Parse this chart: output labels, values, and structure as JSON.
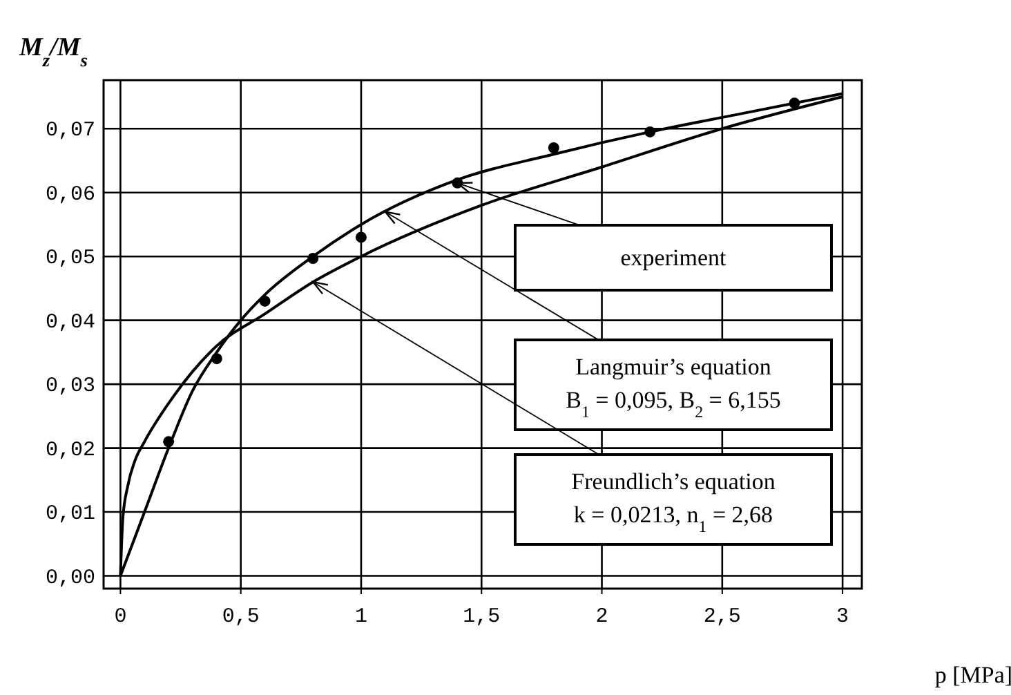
{
  "chart_data": {
    "type": "line",
    "xlabel": "p [MPa]",
    "ylabel": "M$_{z}$/M$_{s}$",
    "xlim": [
      -0.07,
      3.08
    ],
    "ylim": [
      -0.002,
      0.0776
    ],
    "xticks": [
      0,
      {
        "value": 0.5,
        "label": "0,5"
      },
      1,
      {
        "value": 1.5,
        "label": "1,5"
      },
      2,
      {
        "value": 2.5,
        "label": "2,5"
      },
      3
    ],
    "yticks": [
      {
        "value": 0,
        "label": "0,00"
      },
      {
        "value": 0.01,
        "label": "0,01"
      },
      {
        "value": 0.02,
        "label": "0,02"
      },
      {
        "value": 0.03,
        "label": "0,03"
      },
      {
        "value": 0.04,
        "label": "0,04"
      },
      {
        "value": 0.05,
        "label": "0,05"
      },
      {
        "value": 0.06,
        "label": "0,06"
      },
      {
        "value": 0.07,
        "label": "0,07"
      }
    ],
    "grid": true,
    "line_style": "solid",
    "series": [
      {
        "type": "scatter",
        "marker": "circle",
        "color": "#000000",
        "x": [
          0.2,
          0.4,
          0.6,
          0.8,
          1.0,
          1.4,
          1.8,
          2.2,
          2.8
        ],
        "values": [
          0.021,
          0.034,
          0.043,
          0.0497,
          0.053,
          0.0615,
          0.067,
          0.0695,
          0.074
        ]
      },
      {
        "color": "#000000",
        "x": [
          0,
          0.1,
          0.2,
          0.3,
          0.4,
          0.5,
          0.6,
          0.8,
          1.0,
          1.4,
          1.8,
          2.2,
          2.6,
          3.0
        ],
        "values": [
          0,
          0.01,
          0.02,
          0.029,
          0.035,
          0.04,
          0.044,
          0.05,
          0.055,
          0.062,
          0.066,
          0.0695,
          0.0725,
          0.0755
        ]
      },
      {
        "color": "#000000",
        "x": [
          0,
          0.01,
          0.03,
          0.06,
          0.1,
          0.2,
          0.3,
          0.4,
          0.6,
          0.8,
          1.0,
          1.5,
          2.0,
          2.5,
          3.0
        ],
        "values": [
          0,
          0.009,
          0.014,
          0.018,
          0.021,
          0.027,
          0.032,
          0.036,
          0.041,
          0.046,
          0.05,
          0.058,
          0.064,
          0.07,
          0.075
        ]
      }
    ],
    "annotations": [
      {
        "text": "experiment",
        "x": 1.4,
        "y": 0.0615
      },
      {
        "text": "Langmuir’s equation\nB$_{1}$ = 0,095, B$_{2}$ = 6,155",
        "x": 1.1,
        "y": 0.057
      },
      {
        "text": "Freundlich’s equation\nk = 0,0213,   n$_{1}$ = 2,68",
        "x": 0.8,
        "y": 0.046
      }
    ]
  }
}
